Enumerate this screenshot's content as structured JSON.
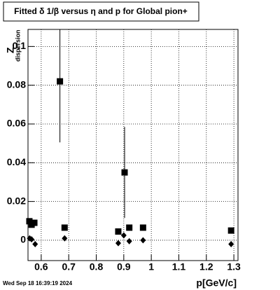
{
  "chart_data": {
    "type": "scatter",
    "title": "Fitted δ 1/β versus η and p for Global pion+",
    "xlabel": "p[GeV/c]",
    "ylabel": "Z",
    "ylabel_sub": "dispersion",
    "footer": "Wed Sep 18 16:39:19 2024",
    "xlim": [
      0.552,
      1.315
    ],
    "xticks": [
      0.6,
      0.7,
      0.8,
      0.9,
      1,
      1.1,
      1.2,
      1.3
    ],
    "ylim": [
      -0.0105,
      0.1088
    ],
    "yticks": [
      0,
      0.02,
      0.04,
      0.06,
      0.08,
      0.1
    ],
    "grid": true,
    "series": [
      {
        "color": "#000000",
        "marker": "square",
        "x": [
          0.557,
          0.565,
          0.575,
          0.668,
          0.685,
          0.88,
          0.903,
          0.92,
          0.97,
          1.29
        ],
        "values": [
          0.0098,
          0.008,
          0.009,
          0.082,
          0.0065,
          0.0045,
          0.035,
          0.0065,
          0.0065,
          0.005
        ],
        "errors": [
          null,
          null,
          null,
          0.0315,
          null,
          null,
          0.0235,
          null,
          null,
          null
        ]
      },
      {
        "color": "#000000",
        "marker": "diamond",
        "x": [
          0.558,
          0.565,
          0.578,
          0.685,
          0.88,
          0.9,
          0.92,
          0.97,
          1.29
        ],
        "values": [
          0.001,
          0.0005,
          -0.002,
          0.001,
          -0.0015,
          0.0025,
          -0.0005,
          0.0,
          -0.002
        ]
      }
    ]
  }
}
